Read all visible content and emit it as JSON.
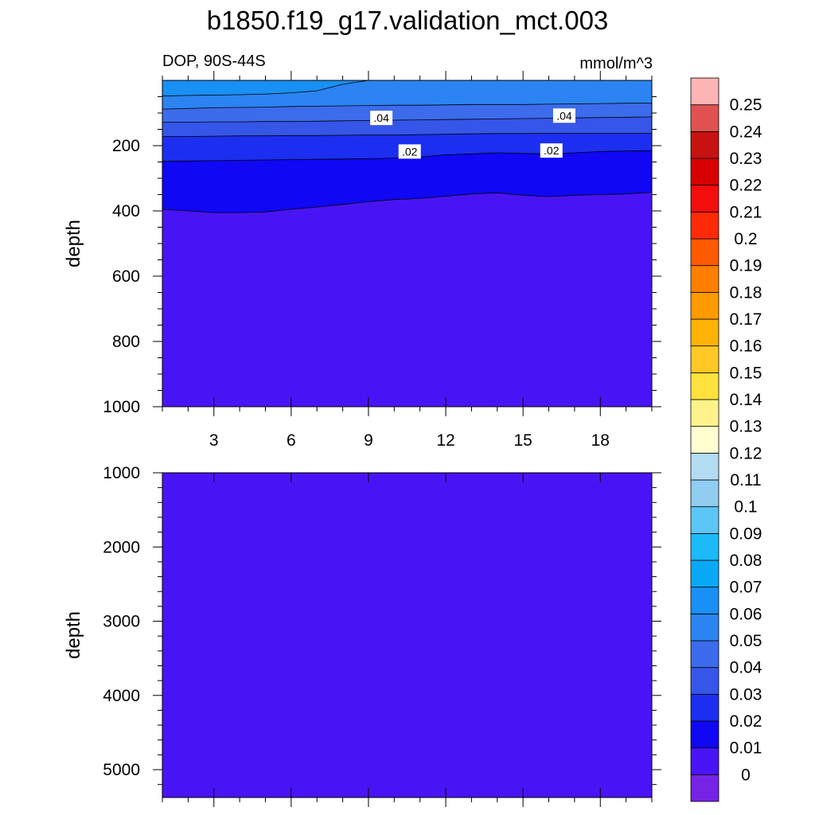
{
  "chart_data": {
    "type": "contour",
    "title": "b1850.f19_g17.validation_mct.003",
    "colors": {
      "background": "#4914f5",
      "contour_line": "#000000",
      "label_box": "#ffffff",
      "frame": "#000000"
    },
    "panels": [
      {
        "name": "upper",
        "left_string": "DOP, 90S-44S",
        "right_string": "mmol/m^3",
        "ylabel": "depth",
        "xlim": [
          1,
          20
        ],
        "ylim": [
          0,
          1000
        ],
        "x_ticks": [
          3,
          6,
          9,
          12,
          15,
          18
        ],
        "x_tick_labels": [
          "3",
          "6",
          "9",
          "12",
          "15",
          "18"
        ],
        "y_ticks": [
          200,
          400,
          600,
          800,
          1000
        ],
        "y_tick_labels": [
          "200",
          "400",
          "600",
          "800",
          "1000"
        ],
        "x_grid": [
          1,
          2,
          3,
          4,
          5,
          6,
          7,
          8,
          9,
          10,
          11,
          12,
          13,
          14,
          15,
          16,
          17,
          18,
          19,
          20
        ],
        "contour_levels": [
          {
            "level": 0.01,
            "depths": [
              395,
              400,
              405,
              405,
              403,
              395,
              388,
              380,
              372,
              365,
              362,
              355,
              348,
              345,
              352,
              356,
              352,
              350,
              348,
              343
            ]
          },
          {
            "level": 0.02,
            "depths": [
              248,
              247,
              246,
              245,
              244,
              243,
              242,
              241,
              240,
              238,
              235,
              228,
              225,
              222,
              224,
              225,
              222,
              218,
              216,
              215
            ]
          },
          {
            "level": 0.03,
            "depths": [
              172,
              172,
              171,
              170,
              170,
              169,
              169,
              168,
              167,
              167,
              166,
              165,
              164,
              163,
              163,
              162,
              162,
              162,
              162,
              162
            ]
          },
          {
            "level": 0.04,
            "depths": [
              128,
              128,
              127,
              127,
              126,
              126,
              125,
              124,
              123,
              122,
              121,
              120,
              119,
              118,
              117,
              116,
              115,
              114,
              113,
              112
            ]
          },
          {
            "level": 0.05,
            "depths": [
              88,
              86,
              84,
              83,
              82,
              80,
              79,
              78,
              77,
              76,
              76,
              75,
              74,
              74,
              74,
              73,
              72,
              71,
              70,
              70
            ]
          },
          {
            "level": 0.06,
            "depths": [
              48,
              46,
              45,
              44,
              42,
              38,
              32,
              12,
              0,
              0,
              0,
              0,
              0,
              0,
              0,
              0,
              0,
              0,
              0,
              0
            ]
          }
        ],
        "contour_labels": [
          {
            "text": ".04",
            "x": 9.5,
            "depth": 115
          },
          {
            "text": ".04",
            "x": 16.6,
            "depth": 108
          },
          {
            "text": ".02",
            "x": 10.6,
            "depth": 218
          },
          {
            "text": ".02",
            "x": 16.1,
            "depth": 215
          }
        ]
      },
      {
        "name": "lower",
        "ylabel": "depth",
        "xlim": [
          1,
          20
        ],
        "ylim": [
          1000,
          5375
        ],
        "x_ticks": [
          3,
          6,
          9,
          12,
          15,
          18
        ],
        "y_ticks": [
          2000,
          3000,
          4000,
          5000
        ],
        "y_ticks_all": [
          1000,
          2000,
          3000,
          4000,
          5000
        ],
        "y_tick_labels": [
          "1000",
          "2000",
          "3000",
          "4000",
          "5000"
        ]
      }
    ],
    "colorbar": {
      "levels": [
        "0",
        "0.01",
        "0.02",
        "0.03",
        "0.04",
        "0.05",
        "0.06",
        "0.07",
        "0.08",
        "0.09",
        "0.1",
        "0.11",
        "0.12",
        "0.13",
        "0.14",
        "0.15",
        "0.16",
        "0.17",
        "0.18",
        "0.19",
        "0.2",
        "0.21",
        "0.22",
        "0.23",
        "0.24",
        "0.25"
      ],
      "colors": [
        "#7623e6",
        "#4914f5",
        "#1007f5",
        "#1c2ef0",
        "#3556e8",
        "#3c6bec",
        "#2b84f2",
        "#1890f5",
        "#0aa9f8",
        "#1cbaf8",
        "#5cc6f6",
        "#90cdf0",
        "#b3dcf2",
        "#fffed0",
        "#fef38a",
        "#ffe23c",
        "#fec927",
        "#ffb308",
        "#ff9a00",
        "#ff7f00",
        "#ff5a00",
        "#ff2a08",
        "#f40d0d",
        "#d80000",
        "#c71212",
        "#e05252",
        "#fcb4b4"
      ]
    }
  }
}
